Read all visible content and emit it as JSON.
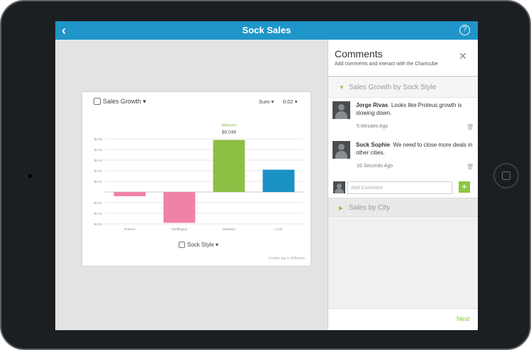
{
  "topbar": {
    "title": "Sock Sales",
    "back_icon": "chevron-left-icon",
    "help_icon": "help-icon",
    "help_glyph": "?"
  },
  "chart_card": {
    "title": "Sales Growth",
    "aggregation": "Sum",
    "scale_value": "0.02",
    "x_axis_title": "Sock Style",
    "hint": "Double tap to drilldown"
  },
  "chart_data": {
    "type": "bar",
    "categories": [
      "Proteus",
      "Sheffington",
      "Widmere",
      "L'Acé"
    ],
    "values": [
      -0.004,
      -0.029,
      0.049,
      0.021
    ],
    "colors": [
      "#f082a5",
      "#f082a5",
      "#8cbf44",
      "#1a92c6"
    ],
    "highlight": {
      "category": "Widmere",
      "label": "$0.049"
    },
    "y_ticks": [
      "$0.05",
      "$0.04",
      "$0.03",
      "$0.02",
      "$0.01",
      "",
      "-$0.01",
      "-$0.02",
      "-$0.03"
    ],
    "y_tick_values": [
      0.05,
      0.04,
      0.03,
      0.02,
      0.01,
      0,
      -0.01,
      -0.02,
      -0.03
    ],
    "ylim": [
      -0.03,
      0.05
    ],
    "grid": true
  },
  "comments_panel": {
    "title": "Comments",
    "subtitle": "Add comments and interact with the Chartcube",
    "section1": "Sales Growth by Sock Style",
    "section2": "Sales by City",
    "comments": [
      {
        "author": "Jorge Rivas",
        "text": "Looks like Proteus growth is slowing down.",
        "time": "5 Minutes Ago"
      },
      {
        "author": "Sock Sophie",
        "text": "We need to close more deals in other cities.",
        "time": "10 Seconds Ago"
      }
    ],
    "add_placeholder": "Add Comment",
    "add_glyph": "+",
    "next_label": "Next"
  }
}
